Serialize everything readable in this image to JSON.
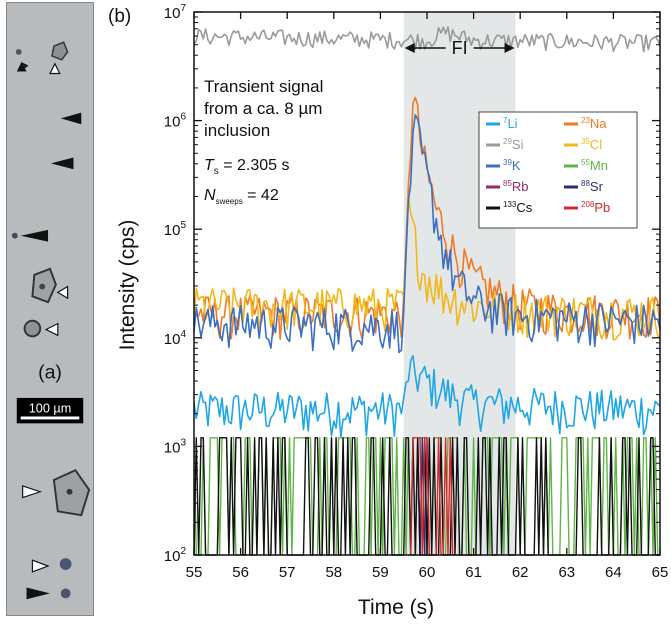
{
  "panel_a": {
    "label": "(a)",
    "scale_bar": "100 µm"
  },
  "chart_data": {
    "type": "line",
    "panel_label": "(b)",
    "xlabel": "Time (s)",
    "ylabel": "Intensity (cps)",
    "xlim": [
      55,
      65
    ],
    "ylim": [
      100,
      10000000
    ],
    "y_scale": "log",
    "x_ticks": [
      55,
      56,
      57,
      58,
      59,
      60,
      61,
      62,
      63,
      64,
      65
    ],
    "y_ticks": [
      {
        "value": 100,
        "base": "10",
        "exp": "2"
      },
      {
        "value": 1000,
        "base": "10",
        "exp": "3"
      },
      {
        "value": 10000,
        "base": "10",
        "exp": "4"
      },
      {
        "value": 100000,
        "base": "10",
        "exp": "5"
      },
      {
        "value": 1000000,
        "base": "10",
        "exp": "6"
      },
      {
        "value": 10000000,
        "base": "10",
        "exp": "7"
      }
    ],
    "shaded_region": {
      "x": [
        59.5,
        61.9
      ],
      "label": "FI"
    },
    "annotations": {
      "line1": "Transient signal",
      "line2": "from a ca. 8 µm",
      "line3": "inclusion",
      "ts_symbol": "T",
      "ts_sub": "s",
      "ts_value": " = 2.305 s",
      "n_symbol": "N",
      "n_sub": "sweeps",
      "n_value": " = 42"
    },
    "series": [
      {
        "name": "Li",
        "mass": "7",
        "color": "#1fa6e6",
        "keypoints": [
          [
            55,
            2200
          ],
          [
            59.5,
            2200
          ],
          [
            59.6,
            5000
          ],
          [
            60,
            4000
          ],
          [
            60.5,
            3000
          ],
          [
            61,
            2500
          ],
          [
            65,
            2200
          ]
        ]
      },
      {
        "name": "Na",
        "mass": "23",
        "color": "#f07b22",
        "keypoints": [
          [
            55,
            17000
          ],
          [
            59.5,
            17000
          ],
          [
            59.6,
            200000
          ],
          [
            59.7,
            2000000
          ],
          [
            59.9,
            500000
          ],
          [
            60.2,
            150000
          ],
          [
            60.6,
            60000
          ],
          [
            61,
            35000
          ],
          [
            61.5,
            25000
          ],
          [
            62,
            20000
          ],
          [
            63,
            18000
          ],
          [
            65,
            17000
          ]
        ]
      },
      {
        "name": "Si",
        "mass": "29",
        "color": "#9a9a9a",
        "keypoints": [
          [
            55,
            6000000
          ],
          [
            60,
            5500000
          ],
          [
            60.4,
            6500000
          ],
          [
            61,
            5500000
          ],
          [
            65,
            5200000
          ]
        ]
      },
      {
        "name": "Cl",
        "mass": "35",
        "color": "#f2b81b",
        "keypoints": [
          [
            55,
            20000
          ],
          [
            59.5,
            20000
          ],
          [
            59.6,
            150000
          ],
          [
            59.9,
            40000
          ],
          [
            60.4,
            25000
          ],
          [
            61,
            20000
          ],
          [
            62,
            18000
          ],
          [
            65,
            17000
          ]
        ]
      },
      {
        "name": "K",
        "mass": "39",
        "color": "#3b6fc4",
        "keypoints": [
          [
            55,
            14000
          ],
          [
            59.5,
            13000
          ],
          [
            59.6,
            200000
          ],
          [
            59.75,
            900000
          ],
          [
            60,
            300000
          ],
          [
            60.3,
            80000
          ],
          [
            60.6,
            35000
          ],
          [
            61,
            22000
          ],
          [
            61.5,
            18000
          ],
          [
            62,
            16000
          ],
          [
            65,
            14000
          ]
        ]
      },
      {
        "name": "Mn",
        "mass": "55",
        "color": "#5fb548",
        "keypoints": [
          [
            55,
            1200
          ],
          [
            65,
            1200
          ]
        ]
      },
      {
        "name": "Rb",
        "mass": "85",
        "color": "#9a2a6a",
        "keypoints": [
          [
            59.7,
            1200
          ],
          [
            60.2,
            1200
          ]
        ]
      },
      {
        "name": "Sr",
        "mass": "88",
        "color": "#2a2f7a",
        "keypoints": [
          [
            59.8,
            1200
          ],
          [
            60.0,
            1200
          ]
        ]
      },
      {
        "name": "Cs",
        "mass": "133",
        "color": "#111111",
        "keypoints": [
          [
            55,
            1200
          ],
          [
            65,
            1200
          ]
        ]
      },
      {
        "name": "Pb",
        "mass": "208",
        "color": "#d42a2a",
        "keypoints": [
          [
            59.6,
            1200
          ],
          [
            61.0,
            1200
          ]
        ]
      }
    ]
  }
}
